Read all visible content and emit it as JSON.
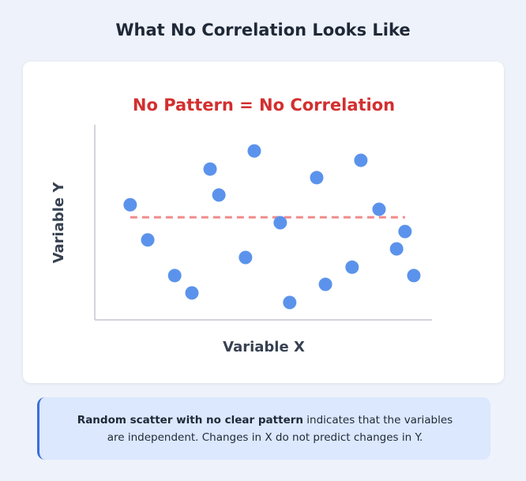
{
  "page": {
    "title": "What No Correlation Looks Like"
  },
  "caption": {
    "bold": "Random scatter with no clear pattern",
    "rest": " indicates that the variables are independent. Changes in X do not predict changes in Y."
  },
  "chart_data": {
    "type": "scatter",
    "title": "No Pattern = No Correlation",
    "xlabel": "Variable X",
    "ylabel": "Variable Y",
    "xlim": [
      0,
      100
    ],
    "ylim": [
      0,
      100
    ],
    "grid": false,
    "point_color": "#5b93ec",
    "title_color": "#d32f2f",
    "reference_line": {
      "y": 52.6,
      "x_start": 10.5,
      "x_end": 92,
      "style": "dashed",
      "color": "#f08a8a"
    },
    "points": [
      {
        "x": 10.5,
        "y": 59
      },
      {
        "x": 15.7,
        "y": 41
      },
      {
        "x": 23.7,
        "y": 22.7
      },
      {
        "x": 28.8,
        "y": 13.8
      },
      {
        "x": 34.2,
        "y": 77.3
      },
      {
        "x": 36.8,
        "y": 64
      },
      {
        "x": 44.7,
        "y": 32
      },
      {
        "x": 47.3,
        "y": 86.6
      },
      {
        "x": 55,
        "y": 49.8
      },
      {
        "x": 57.8,
        "y": 8.9
      },
      {
        "x": 65.8,
        "y": 72.9
      },
      {
        "x": 68.4,
        "y": 18.2
      },
      {
        "x": 76.3,
        "y": 27
      },
      {
        "x": 78.9,
        "y": 81.8
      },
      {
        "x": 84.3,
        "y": 56.7
      },
      {
        "x": 89.5,
        "y": 36.4
      },
      {
        "x": 92,
        "y": 45.3
      },
      {
        "x": 94.6,
        "y": 22.7
      }
    ]
  }
}
